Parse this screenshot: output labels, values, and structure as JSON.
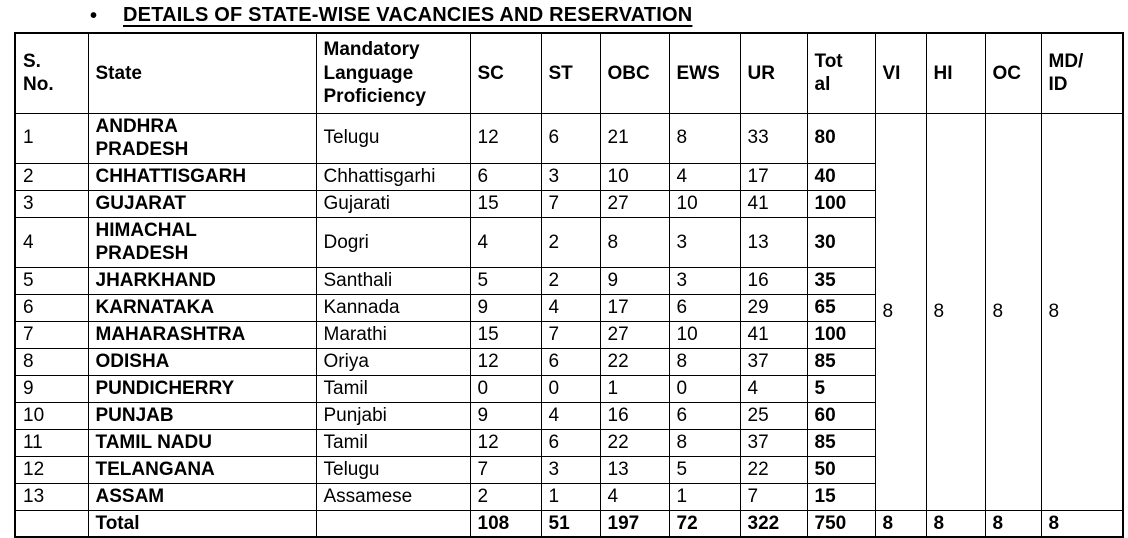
{
  "title": "DETAILS OF STATE-WISE VACANCIES AND RESERVATION",
  "bullet": "•",
  "table": {
    "headers": [
      "S.\nNo.",
      "State",
      "Mandatory\nLanguage\nProficiency",
      "SC",
      "ST",
      "OBC",
      "EWS",
      "UR",
      "Tot\nal",
      "VI",
      "HI",
      "OC",
      "MD/\nID"
    ],
    "rows": [
      {
        "sno": "1",
        "state": "ANDHRA\nPRADESH",
        "language": "Telugu",
        "sc": "12",
        "st": "6",
        "obc": "21",
        "ews": "8",
        "ur": "33",
        "total": "80"
      },
      {
        "sno": "2",
        "state": "CHHATTISGARH",
        "language": "Chhattisgarhi",
        "sc": "6",
        "st": "3",
        "obc": "10",
        "ews": "4",
        "ur": "17",
        "total": "40"
      },
      {
        "sno": "3",
        "state": "GUJARAT",
        "language": "Gujarati",
        "sc": "15",
        "st": "7",
        "obc": "27",
        "ews": "10",
        "ur": "41",
        "total": "100"
      },
      {
        "sno": "4",
        "state": "HIMACHAL\nPRADESH",
        "language": "Dogri",
        "sc": "4",
        "st": "2",
        "obc": "8",
        "ews": "3",
        "ur": "13",
        "total": "30"
      },
      {
        "sno": "5",
        "state": "JHARKHAND",
        "language": "Santhali",
        "sc": "5",
        "st": "2",
        "obc": "9",
        "ews": "3",
        "ur": "16",
        "total": "35"
      },
      {
        "sno": "6",
        "state": "KARNATAKA",
        "language": "Kannada",
        "sc": "9",
        "st": "4",
        "obc": "17",
        "ews": "6",
        "ur": "29",
        "total": "65"
      },
      {
        "sno": "7",
        "state": "MAHARASHTRA",
        "language": "Marathi",
        "sc": "15",
        "st": "7",
        "obc": "27",
        "ews": "10",
        "ur": "41",
        "total": "100"
      },
      {
        "sno": "8",
        "state": "ODISHA",
        "language": "Oriya",
        "sc": "12",
        "st": "6",
        "obc": "22",
        "ews": "8",
        "ur": "37",
        "total": "85"
      },
      {
        "sno": "9",
        "state": "PUNDICHERRY",
        "language": "Tamil",
        "sc": "0",
        "st": "0",
        "obc": "1",
        "ews": "0",
        "ur": "4",
        "total": "5"
      },
      {
        "sno": "10",
        "state": "PUNJAB",
        "language": "Punjabi",
        "sc": "9",
        "st": "4",
        "obc": "16",
        "ews": "6",
        "ur": "25",
        "total": "60"
      },
      {
        "sno": "11",
        "state": "TAMIL NADU",
        "language": "Tamil",
        "sc": "12",
        "st": "6",
        "obc": "22",
        "ews": "8",
        "ur": "37",
        "total": "85"
      },
      {
        "sno": "12",
        "state": "TELANGANA",
        "language": "Telugu",
        "sc": "7",
        "st": "3",
        "obc": "13",
        "ews": "5",
        "ur": "22",
        "total": "50"
      },
      {
        "sno": "13",
        "state": "ASSAM",
        "language": "Assamese",
        "sc": "2",
        "st": "1",
        "obc": "4",
        "ews": "1",
        "ur": "7",
        "total": "15"
      }
    ],
    "merged": {
      "vi": "8",
      "hi": "8",
      "oc": "8",
      "md_id": "8"
    },
    "total_row": {
      "sno": "",
      "label": "Total",
      "language": "",
      "sc": "108",
      "st": "51",
      "obc": "197",
      "ews": "72",
      "ur": "322",
      "total": "750",
      "vi": "8",
      "hi": "8",
      "oc": "8",
      "md_id": "8"
    }
  }
}
